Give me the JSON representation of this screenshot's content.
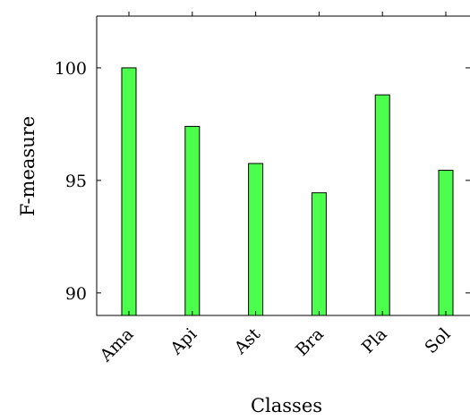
{
  "chart_data": {
    "type": "bar",
    "categories": [
      "Ama",
      "Api",
      "Ast",
      "Bra",
      "Pla",
      "Sol"
    ],
    "values": [
      100.0,
      97.4,
      95.75,
      94.45,
      98.8,
      95.45
    ],
    "xlabel": "Classes",
    "ylabel": "F-measure",
    "ylim": [
      89,
      102.3
    ],
    "yticks": [
      90,
      95,
      100
    ],
    "grid": false,
    "bar_color": "#4dff4d"
  }
}
